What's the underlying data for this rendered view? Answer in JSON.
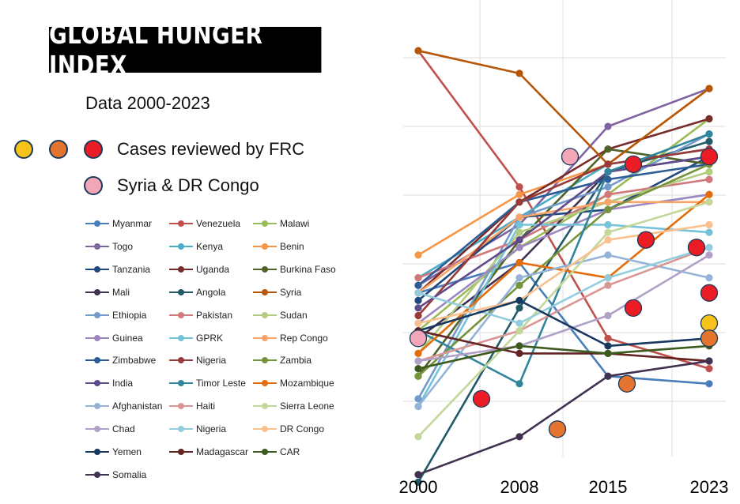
{
  "title": "GLOBAL HUNGER INDEX",
  "subtitle": "Data 2000-2023",
  "highlight_legend": [
    {
      "label": "Cases reviewed by FRC",
      "colors": [
        "#f7c21a",
        "#e5742e",
        "#ec1c24"
      ]
    },
    {
      "label": "Syria & DR Congo",
      "colors": [
        "#f3a6b8"
      ]
    }
  ],
  "chart_data": {
    "type": "line",
    "x": [
      "2000",
      "2008",
      "2015",
      "2023"
    ],
    "ylim": [
      5,
      60
    ],
    "grid": true,
    "legend_placement": "left",
    "series": [
      {
        "name": "Myanmar",
        "color": "#4a7ebb",
        "values": [
          39,
          35,
          50,
          51
        ]
      },
      {
        "name": "Venezuela",
        "color": "#c0504d",
        "values": [
          7,
          25,
          45,
          49
        ]
      },
      {
        "name": "Malawi",
        "color": "#9bbb59",
        "values": [
          44,
          33,
          26,
          16
        ]
      },
      {
        "name": "Togo",
        "color": "#8064a2",
        "values": [
          38,
          30,
          17,
          12
        ]
      },
      {
        "name": "Kenya",
        "color": "#4bacc6",
        "values": [
          37,
          29,
          22,
          20
        ]
      },
      {
        "name": "Benin",
        "color": "#f79646",
        "values": [
          34,
          26,
          22,
          12
        ]
      },
      {
        "name": "Tanzania",
        "color": "#1f497d",
        "values": [
          40,
          29,
          28,
          21
        ]
      },
      {
        "name": "Uganda",
        "color": "#772c2a",
        "values": [
          39,
          27,
          20,
          16
        ]
      },
      {
        "name": "Burkina Faso",
        "color": "#4f6228",
        "values": [
          50,
          32,
          20,
          22
        ]
      },
      {
        "name": "Mali",
        "color": "#3f3151",
        "values": [
          45,
          35,
          23,
          21
        ]
      },
      {
        "name": "Angola",
        "color": "#215968",
        "values": [
          64,
          41,
          23,
          19
        ]
      },
      {
        "name": "Syria",
        "color": "#b65708",
        "values": [
          7,
          10,
          22,
          12
        ]
      },
      {
        "name": "Ethiopia",
        "color": "#729aca",
        "values": [
          53,
          29,
          25,
          18
        ]
      },
      {
        "name": "Pakistan",
        "color": "#d0787a",
        "values": [
          37,
          32,
          26,
          24
        ]
      },
      {
        "name": "Sudan",
        "color": "#b3cc82",
        "values": [
          47,
          31,
          27,
          23
        ]
      },
      {
        "name": "Guinea",
        "color": "#9c87c0",
        "values": [
          43,
          33,
          28,
          26
        ]
      },
      {
        "name": "GPRK",
        "color": "#75c3d8",
        "values": [
          54,
          30,
          30,
          31
        ]
      },
      {
        "name": "Rep Congo",
        "color": "#f9a567",
        "values": [
          39,
          29,
          27,
          27
        ]
      },
      {
        "name": "Zimbabwe",
        "color": "#2c5d96",
        "values": [
          38,
          27,
          24,
          22
        ]
      },
      {
        "name": "Nigeria",
        "color": "#9a3a38",
        "values": [
          42,
          27,
          22,
          20
        ]
      },
      {
        "name": "Zambia",
        "color": "#77933c",
        "values": [
          50,
          38,
          28,
          22
        ]
      },
      {
        "name": "India",
        "color": "#5f4b8b",
        "values": [
          41,
          32,
          23,
          21
        ]
      },
      {
        "name": "Timor Leste",
        "color": "#31859c",
        "values": [
          44,
          51,
          23,
          18
        ]
      },
      {
        "name": "Mozambique",
        "color": "#e46c0a",
        "values": [
          47,
          35,
          37,
          26
        ]
      },
      {
        "name": "Afghanistan",
        "color": "#95b3d7",
        "values": [
          54,
          37,
          34,
          37
        ]
      },
      {
        "name": "Haiti",
        "color": "#da9694",
        "values": [
          48,
          44,
          38,
          33
        ]
      },
      {
        "name": "Sierra Leone",
        "color": "#c4d79b",
        "values": [
          58,
          44,
          31,
          27
        ]
      },
      {
        "name": "Chad",
        "color": "#b1a0c7",
        "values": [
          48,
          46,
          42,
          34
        ]
      },
      {
        "name": "Nigeria",
        "color": "#93cddd",
        "values": [
          39,
          43,
          37,
          33
        ]
      },
      {
        "name": "DR Congo",
        "color": "#fac090",
        "values": [
          43,
          40,
          32,
          30
        ]
      },
      {
        "name": "Yemen",
        "color": "#17375e",
        "values": [
          44,
          40,
          46,
          45
        ]
      },
      {
        "name": "Madagascar",
        "color": "#632523",
        "values": [
          44,
          47,
          47,
          48
        ]
      },
      {
        "name": "CAR",
        "color": "#3d5a1e",
        "values": [
          49,
          46,
          47,
          46
        ]
      },
      {
        "name": "Somalia",
        "color": "#403151",
        "values": [
          63,
          58,
          50,
          48
        ]
      }
    ],
    "highlighted_points": [
      {
        "x": 2000,
        "y": 45,
        "color": "#f3a6b8"
      },
      {
        "x": 2005,
        "y": 53,
        "color": "#ec1c24"
      },
      {
        "x": 2012,
        "y": 21,
        "color": "#f3a6b8"
      },
      {
        "x": 2011,
        "y": 57,
        "color": "#e5742e"
      },
      {
        "x": 2017,
        "y": 22,
        "color": "#ec1c24"
      },
      {
        "x": 2018,
        "y": 32,
        "color": "#ec1c24"
      },
      {
        "x": 2017,
        "y": 41,
        "color": "#ec1c24"
      },
      {
        "x": 2016.5,
        "y": 51,
        "color": "#e5742e"
      },
      {
        "x": 2022,
        "y": 33,
        "color": "#ec1c24"
      },
      {
        "x": 2023,
        "y": 39,
        "color": "#ec1c24"
      },
      {
        "x": 2023,
        "y": 43,
        "color": "#f7c21a"
      },
      {
        "x": 2023,
        "y": 45,
        "color": "#e5742e"
      },
      {
        "x": 2023,
        "y": 21,
        "color": "#ec1c24"
      }
    ]
  }
}
